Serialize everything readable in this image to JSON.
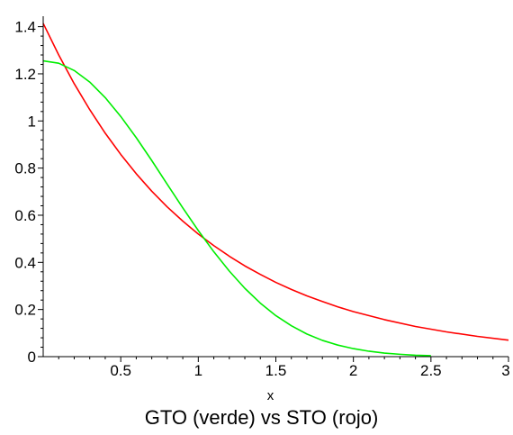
{
  "chart_data": {
    "type": "line",
    "title": "GTO (verde) vs STO (rojo)",
    "xlabel": "x",
    "ylabel": "",
    "xlim": [
      0,
      3
    ],
    "ylim": [
      0,
      1.41
    ],
    "x_ticks": [
      0.5,
      1,
      1.5,
      2,
      2.5,
      3
    ],
    "x_tick_labels": [
      "0.5",
      "1",
      "1.5",
      "2",
      "2.5",
      "3"
    ],
    "y_ticks": [
      0,
      0.2,
      0.4,
      0.6,
      0.8,
      1,
      1.2,
      1.4
    ],
    "y_tick_labels": [
      "0",
      "0.2",
      "0.4",
      "0.6",
      "0.8",
      "1",
      "1.2",
      "1.4"
    ],
    "grid": false,
    "legend": "none",
    "series": [
      {
        "color": "#ff0000",
        "x": [
          0,
          0.1,
          0.2,
          0.3,
          0.4,
          0.5,
          0.6,
          0.7,
          0.8,
          0.9,
          1,
          1.1,
          1.2,
          1.3,
          1.4,
          1.5,
          1.6,
          1.7,
          1.8,
          1.9,
          2,
          2.2,
          2.4,
          2.6,
          2.8,
          3
        ],
        "y": [
          1.414,
          1.28,
          1.158,
          1.048,
          0.948,
          0.858,
          0.776,
          0.702,
          0.635,
          0.575,
          0.52,
          0.471,
          0.426,
          0.385,
          0.349,
          0.315,
          0.285,
          0.258,
          0.234,
          0.211,
          0.191,
          0.157,
          0.128,
          0.105,
          0.086,
          0.07
        ]
      },
      {
        "color": "#00ee00",
        "x": [
          0,
          0.1,
          0.2,
          0.3,
          0.4,
          0.5,
          0.6,
          0.7,
          0.8,
          0.9,
          1,
          1.1,
          1.2,
          1.3,
          1.4,
          1.5,
          1.6,
          1.7,
          1.8,
          1.9,
          2,
          2.1,
          2.2,
          2.3,
          2.4,
          2.5
        ],
        "y": [
          1.255,
          1.245,
          1.214,
          1.165,
          1.099,
          1.019,
          0.929,
          0.832,
          0.731,
          0.631,
          0.535,
          0.445,
          0.363,
          0.29,
          0.227,
          0.174,
          0.131,
          0.096,
          0.069,
          0.049,
          0.034,
          0.023,
          0.015,
          0.01,
          0.006,
          0.004
        ]
      }
    ]
  }
}
